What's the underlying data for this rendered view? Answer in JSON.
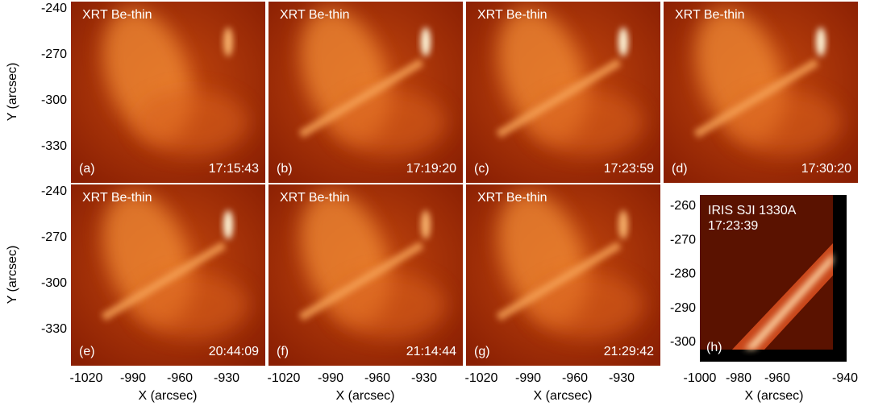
{
  "panels": [
    {
      "instrument": "XRT Be-thin",
      "letter": "(a)",
      "time": "17:15:43"
    },
    {
      "instrument": "XRT Be-thin",
      "letter": "(b)",
      "time": "17:19:20"
    },
    {
      "instrument": "XRT Be-thin",
      "letter": "(c)",
      "time": "17:23:59"
    },
    {
      "instrument": "XRT Be-thin",
      "letter": "(d)",
      "time": "17:30:20"
    },
    {
      "instrument": "XRT Be-thin",
      "letter": "(e)",
      "time": "20:44:09"
    },
    {
      "instrument": "XRT Be-thin",
      "letter": "(f)",
      "time": "21:14:44"
    },
    {
      "instrument": "XRT Be-thin",
      "letter": "(g)",
      "time": "21:29:42"
    }
  ],
  "y_axis": {
    "label": "Y (arcsec)",
    "ticks": [
      "-240",
      "-270",
      "-300",
      "-330"
    ]
  },
  "x_axis": {
    "label": "X (arcsec)",
    "ticks": [
      "-1020",
      "-990",
      "-960",
      "-930"
    ]
  },
  "iris": {
    "instrument": "IRIS SJI 1330A",
    "time": "17:23:39",
    "letter": "(h)",
    "x_label": "X (arcsec)",
    "x_ticks": [
      "-1000",
      "-980",
      "-960",
      "-940"
    ],
    "y_ticks": [
      "-260",
      "-270",
      "-280",
      "-290",
      "-300"
    ]
  }
}
